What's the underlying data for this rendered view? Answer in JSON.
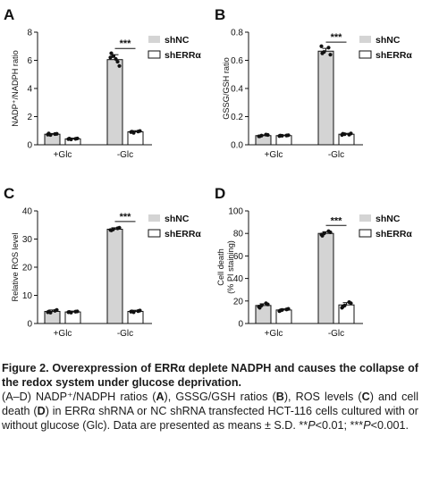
{
  "chart_data": [
    {
      "type": "bar",
      "panel_label": "A",
      "ylabel": "NADP⁺/NADPH ratio",
      "ylim": [
        0,
        8
      ],
      "yticks": [
        "0",
        "2",
        "4",
        "6",
        "8"
      ],
      "categories": [
        "+Glc",
        "-Glc"
      ],
      "series": [
        {
          "name": "shNC",
          "values": [
            0.75,
            6.05
          ],
          "err": [
            0.05,
            0.35
          ],
          "color": "#d4d4d4",
          "points": [
            [
              0.72,
              0.78,
              0.7,
              0.76,
              0.8
            ],
            [
              6.2,
              5.6,
              6.3,
              5.9,
              6.5,
              6.1
            ]
          ]
        },
        {
          "name": "shERRα",
          "values": [
            0.42,
            0.92
          ],
          "err": [
            0.05,
            0.08
          ],
          "color": "#ffffff",
          "points": [
            [
              0.4,
              0.45,
              0.38,
              0.42,
              0.44
            ],
            [
              0.9,
              0.98,
              0.85,
              0.94,
              0.93
            ]
          ]
        }
      ],
      "significance": "***",
      "legend": "top-right"
    },
    {
      "type": "bar",
      "panel_label": "B",
      "ylabel": "GSSG/GSH ratio",
      "ylim": [
        0,
        0.8
      ],
      "yticks": [
        "0.0",
        "0.2",
        "0.4",
        "0.6",
        "0.8"
      ],
      "categories": [
        "+Glc",
        "-Glc"
      ],
      "series": [
        {
          "name": "shNC",
          "values": [
            0.065,
            0.665
          ],
          "err": [
            0.005,
            0.02
          ],
          "color": "#d4d4d4",
          "points": [
            [
              0.06,
              0.07,
              0.065,
              0.072,
              0.06
            ],
            [
              0.7,
              0.64,
              0.66,
              0.69,
              0.65
            ]
          ]
        },
        {
          "name": "shERRα",
          "values": [
            0.065,
            0.075
          ],
          "err": [
            0.004,
            0.006
          ],
          "color": "#ffffff",
          "points": [
            [
              0.062,
              0.068,
              0.064,
              0.066,
              0.065
            ],
            [
              0.07,
              0.08,
              0.075,
              0.072,
              0.078
            ]
          ]
        }
      ],
      "significance": "***",
      "legend": "top-right"
    },
    {
      "type": "bar",
      "panel_label": "C",
      "ylabel": "Relative ROS level",
      "ylim": [
        0,
        40
      ],
      "yticks": [
        "0",
        "10",
        "20",
        "30",
        "40"
      ],
      "categories": [
        "+Glc",
        "-Glc"
      ],
      "series": [
        {
          "name": "shNC",
          "values": [
            4.3,
            33.5
          ],
          "err": [
            0.5,
            0.5
          ],
          "color": "#d4d4d4",
          "points": [
            [
              4.0,
              4.8,
              3.9,
              4.5,
              4.2
            ],
            [
              33.2,
              34.0,
              33.4,
              33.8,
              33.1
            ]
          ]
        },
        {
          "name": "shERRα",
          "values": [
            4.1,
            4.3
          ],
          "err": [
            0.3,
            0.4
          ],
          "color": "#ffffff",
          "points": [
            [
              4.0,
              4.3,
              3.9,
              4.2,
              4.1
            ],
            [
              4.2,
              4.6,
              4.0,
              4.4,
              4.3
            ]
          ]
        }
      ],
      "significance": "***",
      "legend": "top-right"
    },
    {
      "type": "bar",
      "panel_label": "D",
      "ylabel": "Cell death\n(% PI staining)",
      "ylim": [
        0,
        100
      ],
      "yticks": [
        "0",
        "20",
        "40",
        "60",
        "80",
        "100"
      ],
      "categories": [
        "+Glc",
        "-Glc"
      ],
      "series": [
        {
          "name": "shNC",
          "values": [
            16,
            80
          ],
          "err": [
            1.5,
            1.5
          ],
          "color": "#d4d4d4",
          "points": [
            [
              15,
              17,
              16,
              18,
              14
            ],
            [
              79,
              81,
              80,
              82,
              78
            ]
          ]
        },
        {
          "name": "shERRα",
          "values": [
            12,
            16.5
          ],
          "err": [
            1,
            2
          ],
          "color": "#ffffff",
          "points": [
            [
              11,
              13,
              12,
              12.5,
              11.5
            ],
            [
              14,
              18,
              16,
              19,
              15
            ]
          ]
        }
      ],
      "significance": "***",
      "legend": "top-right"
    }
  ],
  "caption": {
    "title": "Figure 2. Overexpression of ERRα deplete NADPH and causes the collapse of the redox system under glucose deprivation.",
    "body": [
      {
        "t": "(A–D) NADP⁺/NADPH ratios ("
      },
      {
        "t": "A",
        "b": true
      },
      {
        "t": "), GSSG/GSH ratios ("
      },
      {
        "t": "B",
        "b": true
      },
      {
        "t": "), ROS levels ("
      },
      {
        "t": "C",
        "b": true
      },
      {
        "t": ") and cell death ("
      },
      {
        "t": "D",
        "b": true
      },
      {
        "t": ") in ERRα shRNA or NC shRNA transfected HCT-116 cells cultured with or without glucose (Glc). Data are presented as means ± S.D. **"
      },
      {
        "t": "P",
        "i": true
      },
      {
        "t": "<0.01; ***"
      },
      {
        "t": "P",
        "i": true
      },
      {
        "t": "<0.001."
      }
    ]
  }
}
